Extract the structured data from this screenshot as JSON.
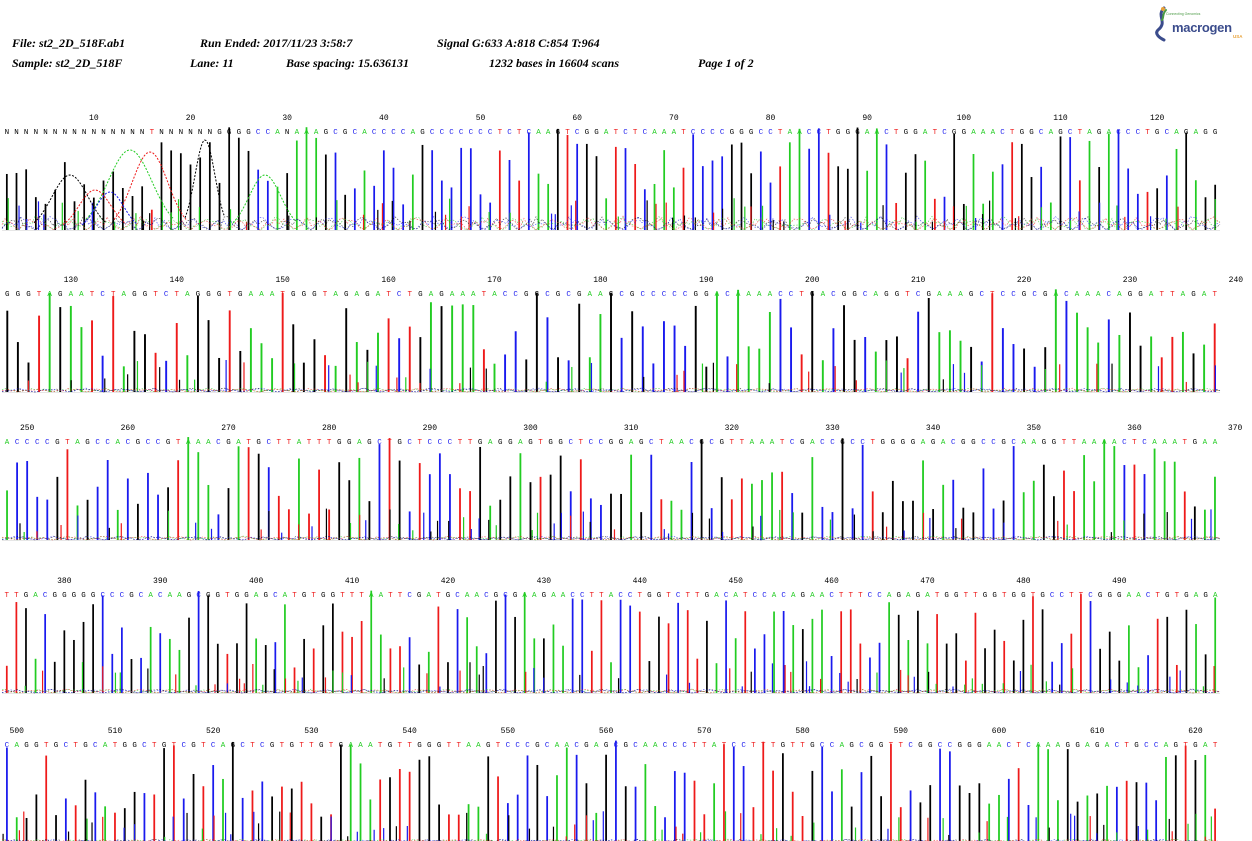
{
  "header": {
    "file": "File: st2_2D_518F.ab1",
    "run_ended": "Run Ended: 2017/11/23 3:58:7",
    "signal": "Signal G:633 A:818 C:854 T:964",
    "sample": "Sample: st2_2D_518F",
    "lane": "Lane: 11",
    "base_spacing": "Base spacing: 15.636131",
    "bases": "1232 bases in 16604 scans",
    "page": "Page 1 of 2"
  },
  "logo": {
    "brand": "macrogen",
    "tagline": "Connecting Genomics",
    "region": "USA"
  },
  "colors": {
    "A": "#22cc22",
    "C": "#1a1aee",
    "G": "#000000",
    "T": "#ee1a1a",
    "N": "#000000"
  },
  "chart_data": [
    {
      "type": "line",
      "title": "",
      "start_base": 1,
      "end_base": 123,
      "tick_labels": [
        "10",
        "20",
        "30",
        "40",
        "50",
        "60",
        "70",
        "80",
        "90",
        "100",
        "110",
        "120"
      ],
      "sequence": "NNNNNNNNNNNNNNNTNNNNNNGGGGCCANAAAGCGCACCCCAGCCCCCCCTCTCAAGTCGGATCTCAAATCCCCGGGCCTAACCTGGGAACTGGATCGGAAACTGGCAGCTAGACCCTGCAGAGG",
      "channels": [
        "G",
        "A",
        "C",
        "T"
      ]
    },
    {
      "type": "line",
      "title": "",
      "start_base": 124,
      "end_base": 247,
      "tick_labels": [
        "130",
        "140",
        "150",
        "160",
        "170",
        "180",
        "190",
        "200",
        "210",
        "220",
        "230",
        "240"
      ],
      "sequence": "GGGTAGAATCTAGGTCTAGGGTGAAATGGGTAGAGATCTGAGAAATACCGGCGCGAAGCGCCCCCGGACAAAACCTGACGGCAGGTCGAAAGCTCCGCGACAAACAGGATTAGAT",
      "channels": [
        "G",
        "A",
        "C",
        "T"
      ]
    },
    {
      "type": "line",
      "title": "",
      "start_base": 248,
      "end_base": 373,
      "tick_labels": [
        "250",
        "260",
        "270",
        "280",
        "290",
        "300",
        "310",
        "320",
        "330",
        "340",
        "350",
        "360",
        "370"
      ],
      "sequence": "ACCCCGTAGCCACGCCGTAAACGATGCTTATTTGGAGCTGCTCCCTTGAGGAGTGGCTCCGGAGCTAACGCGTTAAATCGACCGCCTGGGGAGACGGCCGCAAGGTTAAAACTCAAATGAA",
      "channels": [
        "G",
        "A",
        "C",
        "T"
      ]
    },
    {
      "type": "line",
      "title": "",
      "start_base": 374,
      "end_base": 498,
      "tick_labels": [
        "380",
        "390",
        "400",
        "410",
        "420",
        "430",
        "440",
        "450",
        "460",
        "470",
        "480",
        "490"
      ],
      "sequence": "TTGACGGGGGCCCGCACAAGCGGTGGAGCATGTGGTTTAATTCGATGCAACGCGAAGAACCTTACCTGGTCTTGACATCCACAGAACTTTCCAGAGATGGTTGGTGGTGCCTTCGGGAACTGTGAGA",
      "channels": [
        "G",
        "A",
        "C",
        "T"
      ]
    },
    {
      "type": "line",
      "title": "",
      "start_base": 499,
      "end_base": 632,
      "tick_labels": [
        "500",
        "510",
        "520",
        "530",
        "540",
        "550",
        "560",
        "570",
        "580",
        "590",
        "600",
        "610",
        "620"
      ],
      "sequence": "CAGGTGCTGCATGGCTGTCGTCAGCTCGTGTTGTGAAATGTTGGGTTAAGTCCCGCAACGAGCGCAACCCTTATCCTTTGTTGCCAGCGGTTCGGCCGGGAACTCAAAGGAGACTGCCAGTGAT",
      "channels": [
        "G",
        "A",
        "C",
        "T"
      ]
    }
  ]
}
